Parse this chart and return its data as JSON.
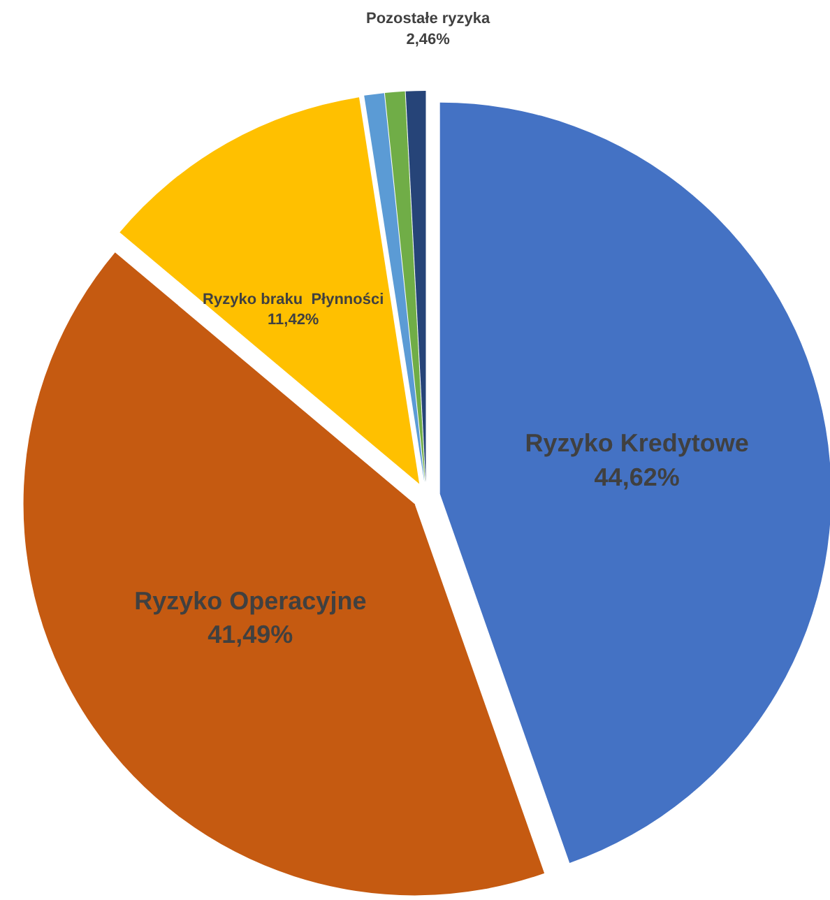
{
  "chart_data": {
    "type": "pie",
    "categories": [
      "Ryzyko Kredytowe",
      "Ryzyko Operacyjne",
      "Ryzyko braku  Płynności",
      null,
      null,
      null
    ],
    "values": [
      44.62,
      41.49,
      11.42,
      0.82,
      0.82,
      0.82
    ],
    "colors": [
      "#4472c4",
      "#c55a11",
      "#ffc000",
      "#5b9bd5",
      "#70ad47",
      "#264478"
    ],
    "value_labels": [
      "44,62%",
      "41,49%",
      "11,42%",
      null,
      null,
      null
    ],
    "annotations": [
      "Pozostałe ryzyka\n2,46%"
    ],
    "legend": false
  }
}
